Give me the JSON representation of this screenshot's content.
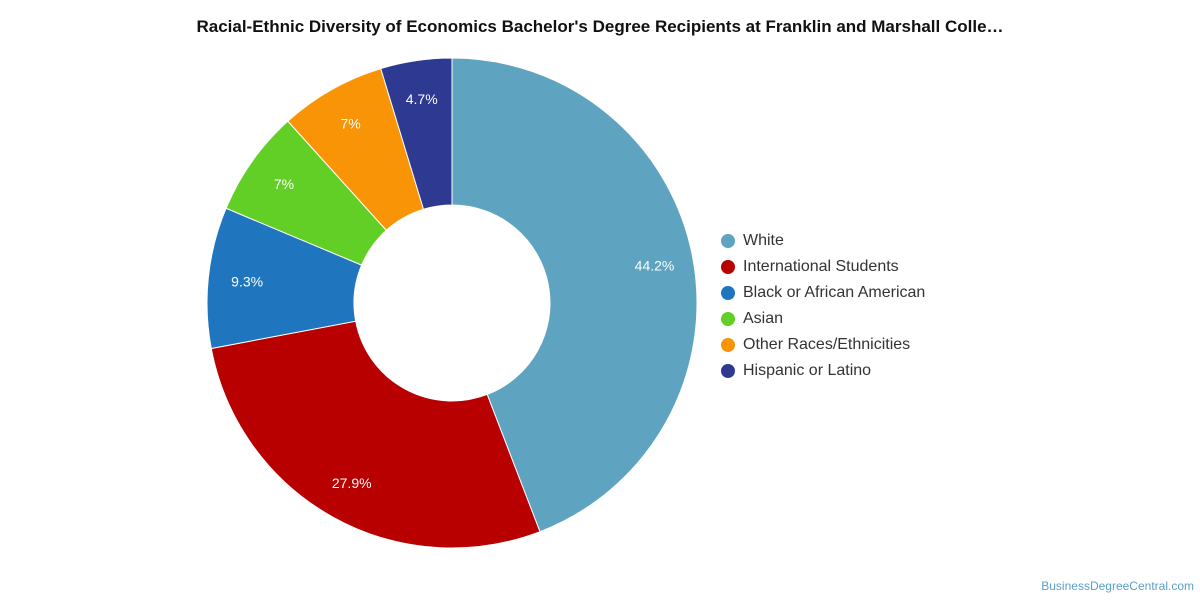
{
  "chart_data": {
    "type": "pie",
    "variant": "donut",
    "title": "Racial-Ethnic Diversity of Economics Bachelor's Degree Recipients at Franklin and Marshall Colle…",
    "legend_position": "right",
    "series": [
      {
        "name": "White",
        "value": 44.2,
        "label": "44.2%",
        "color": "#5ea3c0"
      },
      {
        "name": "International Students",
        "value": 27.9,
        "label": "27.9%",
        "color": "#b80000"
      },
      {
        "name": "Black or African American",
        "value": 9.3,
        "label": "9.3%",
        "color": "#1f76bf"
      },
      {
        "name": "Asian",
        "value": 7,
        "label": "7%",
        "color": "#62cf26"
      },
      {
        "name": "Other Races/Ethnicities",
        "value": 7,
        "label": "7%",
        "color": "#f89406"
      },
      {
        "name": "Hispanic or Latino",
        "value": 4.7,
        "label": "4.7%",
        "color": "#2e3991"
      }
    ]
  },
  "credit": "BusinessDegreeCentral.com"
}
